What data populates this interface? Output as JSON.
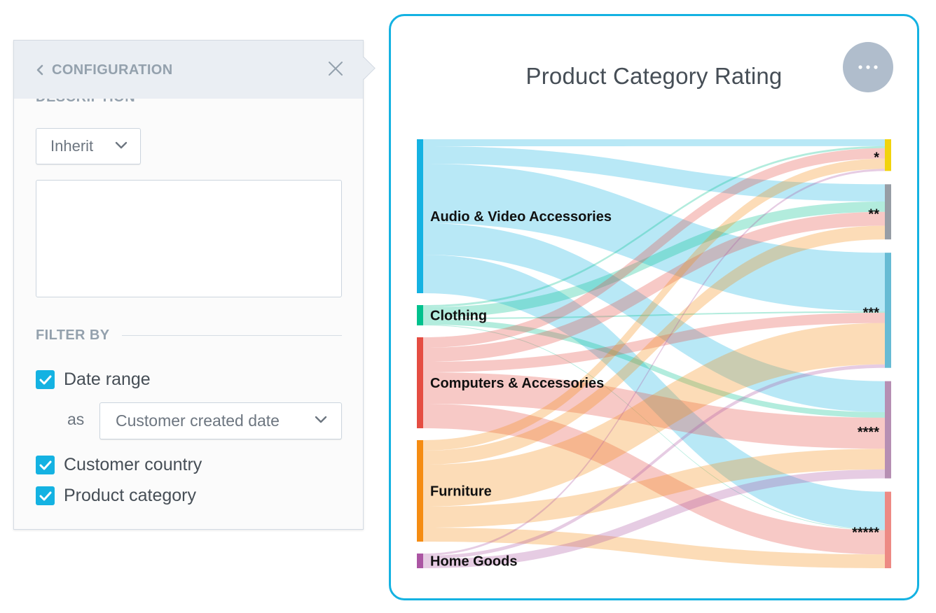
{
  "config": {
    "title": "CONFIGURATION",
    "description_label": "DESCRIPTION",
    "description_source": "Inherit",
    "description_text": "",
    "filter_by_label": "FILTER BY",
    "filters": [
      {
        "label": "Date range",
        "checked": true
      },
      {
        "label": "Customer country",
        "checked": true
      },
      {
        "label": "Product category",
        "checked": true
      }
    ],
    "date_as_label": "as",
    "date_field": "Customer created date"
  },
  "chart_data": {
    "type": "sankey",
    "title": "Product Category Rating",
    "sources": [
      {
        "name": "Audio & Video Accessories",
        "color": "#14b2e2"
      },
      {
        "name": "Clothing",
        "color": "#00c18d"
      },
      {
        "name": "Computers & Accessories",
        "color": "#e54d42"
      },
      {
        "name": "Furniture",
        "color": "#f58c12"
      },
      {
        "name": "Home Goods",
        "color": "#ab55a3"
      }
    ],
    "targets": [
      {
        "name": "*",
        "color": "#f1d30d"
      },
      {
        "name": "**",
        "color": "#979da5"
      },
      {
        "name": "***",
        "color": "#67bbd4"
      },
      {
        "name": "****",
        "color": "#b68fb3"
      },
      {
        "name": "*****",
        "color": "#ed8a84"
      }
    ],
    "links": [
      {
        "source": "Audio & Video Accessories",
        "target": "*",
        "value": 10
      },
      {
        "source": "Audio & Video Accessories",
        "target": "**",
        "value": 25
      },
      {
        "source": "Audio & Video Accessories",
        "target": "***",
        "value": 85
      },
      {
        "source": "Audio & Video Accessories",
        "target": "****",
        "value": 45
      },
      {
        "source": "Audio & Video Accessories",
        "target": "*****",
        "value": 55
      },
      {
        "source": "Clothing",
        "target": "*",
        "value": 3
      },
      {
        "source": "Clothing",
        "target": "**",
        "value": 15
      },
      {
        "source": "Clothing",
        "target": "***",
        "value": 2
      },
      {
        "source": "Clothing",
        "target": "****",
        "value": 8
      },
      {
        "source": "Clothing",
        "target": "*****",
        "value": 1
      },
      {
        "source": "Computers & Accessories",
        "target": "*",
        "value": 15
      },
      {
        "source": "Computers & Accessories",
        "target": "**",
        "value": 20
      },
      {
        "source": "Computers & Accessories",
        "target": "***",
        "value": 15
      },
      {
        "source": "Computers & Accessories",
        "target": "****",
        "value": 45
      },
      {
        "source": "Computers & Accessories",
        "target": "*****",
        "value": 35
      },
      {
        "source": "Furniture",
        "target": "*",
        "value": 15
      },
      {
        "source": "Furniture",
        "target": "**",
        "value": 20
      },
      {
        "source": "Furniture",
        "target": "***",
        "value": 60
      },
      {
        "source": "Furniture",
        "target": "****",
        "value": 30
      },
      {
        "source": "Furniture",
        "target": "*****",
        "value": 20
      },
      {
        "source": "Home Goods",
        "target": "*",
        "value": 3
      },
      {
        "source": "Home Goods",
        "target": "***",
        "value": 5
      },
      {
        "source": "Home Goods",
        "target": "****",
        "value": 13
      }
    ]
  }
}
